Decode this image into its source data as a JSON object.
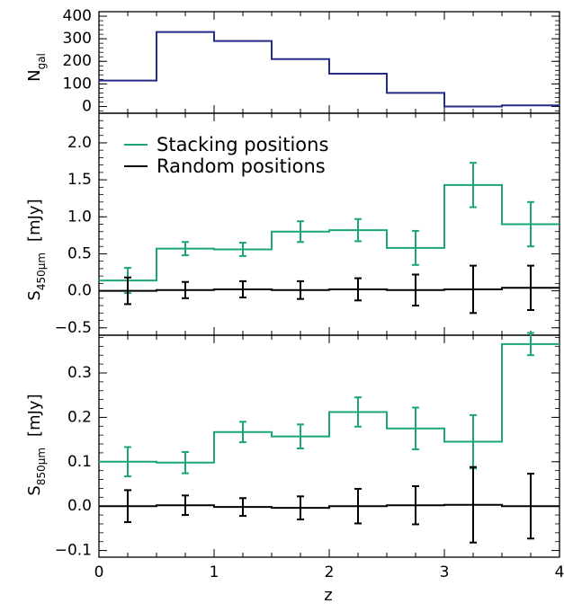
{
  "chart_data": [
    {
      "type": "histogram-step",
      "xlabel": "z",
      "ylabel": "N",
      "ylabel_sub": "gal",
      "xlim": [
        0,
        4
      ],
      "ylim": [
        -30,
        420
      ],
      "yticks": [
        0,
        100,
        200,
        300,
        400
      ],
      "ytick_labels": [
        "0",
        "100",
        "200",
        "300",
        "400"
      ],
      "bin_edges": [
        0,
        0.5,
        1.0,
        1.5,
        2.0,
        2.5,
        3.0,
        3.5,
        4.0
      ],
      "series": [
        {
          "color": "#232b86",
          "values": [
            115,
            330,
            290,
            210,
            145,
            60,
            0,
            5
          ]
        }
      ]
    },
    {
      "type": "histogram-step-errorbar",
      "xlabel": "z",
      "ylabel": "S",
      "ylabel_sub": "450μm",
      "ylabel_unit": "[mJy]",
      "xlim": [
        0,
        4
      ],
      "ylim": [
        -0.6,
        2.4
      ],
      "yticks": [
        -0.5,
        0.0,
        0.5,
        1.0,
        1.5,
        2.0
      ],
      "ytick_labels": [
        "−0.5",
        "0.0",
        "0.5",
        "1.0",
        "1.5",
        "2.0"
      ],
      "legend_placement": "top-left",
      "bin_edges": [
        0,
        0.5,
        1.0,
        1.5,
        2.0,
        2.5,
        3.0,
        3.5,
        4.0
      ],
      "bin_centers": [
        0.25,
        0.75,
        1.25,
        1.75,
        2.25,
        2.75,
        3.25,
        3.75
      ],
      "series": [
        {
          "name": "Stacking positions",
          "color": "#1aa57a",
          "values": [
            0.14,
            0.57,
            0.56,
            0.8,
            0.82,
            0.58,
            1.43,
            0.9
          ],
          "errors": [
            0.17,
            0.09,
            0.09,
            0.14,
            0.15,
            0.23,
            0.3,
            0.3
          ]
        },
        {
          "name": "Random positions",
          "color": "#000000",
          "values": [
            0.0,
            0.01,
            0.02,
            0.01,
            0.02,
            0.01,
            0.02,
            0.04
          ],
          "errors": [
            0.18,
            0.11,
            0.11,
            0.12,
            0.15,
            0.21,
            0.32,
            0.3
          ]
        }
      ]
    },
    {
      "type": "histogram-step-errorbar",
      "xlabel": "z",
      "ylabel": "S",
      "ylabel_sub": "850μm",
      "ylabel_unit": "[mJy]",
      "xlim": [
        0,
        4
      ],
      "xticks": [
        0,
        1,
        2,
        3,
        4
      ],
      "xtick_labels": [
        "0",
        "1",
        "2",
        "3",
        "4"
      ],
      "ylim": [
        -0.115,
        0.385
      ],
      "yticks": [
        -0.1,
        0.0,
        0.1,
        0.2,
        0.3
      ],
      "ytick_labels": [
        "−0.1",
        "0.0",
        "0.1",
        "0.2",
        "0.3"
      ],
      "bin_edges": [
        0,
        0.5,
        1.0,
        1.5,
        2.0,
        2.5,
        3.0,
        3.5,
        4.0
      ],
      "bin_centers": [
        0.25,
        0.75,
        1.25,
        1.75,
        2.25,
        2.75,
        3.25,
        3.75
      ],
      "series": [
        {
          "name": "Stacking positions",
          "color": "#1aa57a",
          "values": [
            0.1,
            0.098,
            0.167,
            0.157,
            0.212,
            0.175,
            0.145,
            0.365
          ],
          "errors": [
            0.033,
            0.024,
            0.023,
            0.027,
            0.033,
            0.047,
            0.06,
            0.025
          ]
        },
        {
          "name": "Random positions",
          "color": "#000000",
          "values": [
            0.0,
            0.002,
            -0.002,
            -0.004,
            0.0,
            0.002,
            0.003,
            0.0
          ],
          "errors": [
            0.036,
            0.022,
            0.02,
            0.026,
            0.039,
            0.043,
            0.085,
            0.073
          ]
        }
      ]
    }
  ]
}
